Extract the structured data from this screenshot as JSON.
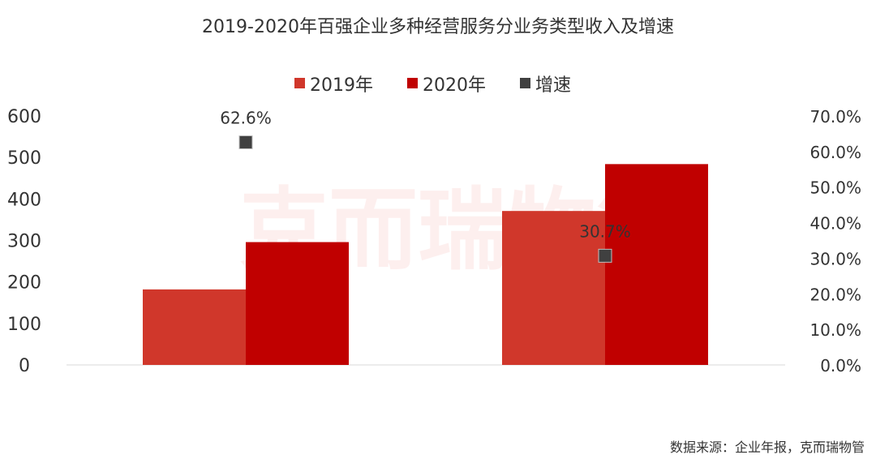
{
  "chart_data": {
    "type": "bar",
    "title": "2019-2020年百强企业多种经营服务分业务类型收入及增速",
    "categories": [
      "",
      ""
    ],
    "series": [
      {
        "name": "2019年",
        "kind": "bar",
        "axis": "left",
        "color": "#d0372b",
        "values": [
          182,
          371
        ]
      },
      {
        "name": "2020年",
        "kind": "bar",
        "axis": "left",
        "color": "#c00000",
        "values": [
          296,
          484
        ]
      },
      {
        "name": "增速",
        "kind": "marker",
        "axis": "right",
        "color": "#404040",
        "values": [
          62.6,
          30.7
        ],
        "labels": [
          "62.6%",
          "30.7%"
        ]
      }
    ],
    "y_left": {
      "min": 0,
      "max": 600,
      "ticks": [
        "0",
        "100",
        "200",
        "300",
        "400",
        "500",
        "600"
      ]
    },
    "y_right": {
      "min": 0,
      "max": 70,
      "ticks": [
        "0.0%",
        "10.0%",
        "20.0%",
        "30.0%",
        "40.0%",
        "50.0%",
        "60.0%",
        "70.0%"
      ]
    },
    "legend_position": "top",
    "grid": false
  },
  "watermark": "克而瑞物管",
  "source": "数据来源：企业年报，克而瑞物管"
}
